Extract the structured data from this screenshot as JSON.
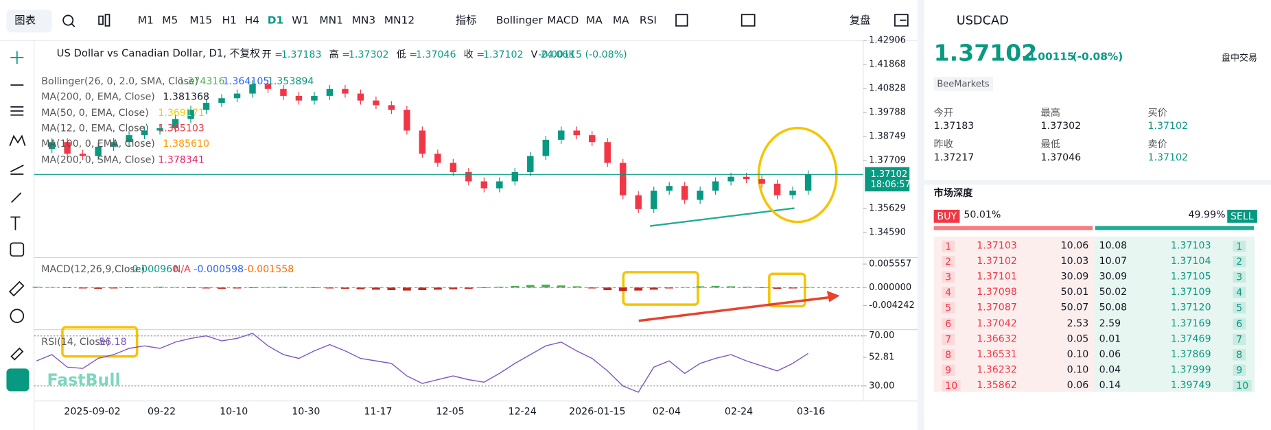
{
  "toolbar": {
    "chart_menu": "图表",
    "timeframes": [
      "M1",
      "M5",
      "M15",
      "H1",
      "H4",
      "D1",
      "W1",
      "MN1",
      "MN3",
      "MN12"
    ],
    "active_timeframe": 5,
    "indicators_menu": "指标",
    "indicators": [
      "Bollinger",
      "MACD",
      "MA",
      "MA",
      "RSI"
    ],
    "replay": "复盘"
  },
  "chart": {
    "title": "US Dollar vs Canadian Dollar, D1, 不复权",
    "ohlc": [
      {
        "label": "开 =",
        "value": "1.37183"
      },
      {
        "label": "高 =",
        "value": "1.37302"
      },
      {
        "label": "低 =",
        "value": "1.37046"
      },
      {
        "label": "收 =",
        "value": "1.37102"
      },
      {
        "label": "V",
        "value": "24.06K"
      }
    ],
    "change": "-0.00115 (-0.08%)",
    "overlays": [
      {
        "name": "Bollinger(26, 0, 2.0, SMA, Close)",
        "values": [
          "1.374316",
          "1.364105",
          "1.353894"
        ],
        "colors": [
          "#4caf50",
          "#2962ff",
          "#089981"
        ]
      },
      {
        "name": "MA(200, 0, EMA, Close)",
        "values": [
          "1.381368"
        ],
        "colors": [
          "#131722"
        ]
      },
      {
        "name": "MA(50, 0, EMA, Close)",
        "values": [
          "1.369171"
        ],
        "colors": [
          "#f0d000"
        ]
      },
      {
        "name": "MA(12, 0, EMA, Close)",
        "values": [
          "1.365103"
        ],
        "colors": [
          "#f23645"
        ]
      },
      {
        "name": "MA(100, 0, EMA, Close)",
        "values": [
          "1.385610"
        ],
        "colors": [
          "#ff9800"
        ]
      },
      {
        "name": "MA(200, 0, SMA, Close)",
        "values": [
          "1.378341"
        ],
        "colors": [
          "#e91e63"
        ]
      }
    ],
    "price": {
      "ylim": [
        1.335,
        1.429
      ],
      "yticks": [
        1.42906,
        1.41868,
        1.40828,
        1.39788,
        1.38749,
        1.37709,
        1.35629,
        {
          "value": 1.3459,
          "label": "1.34590"
        }
      ],
      "closes": [
        1.382,
        1.385,
        1.38,
        1.379,
        1.383,
        1.385,
        1.388,
        1.39,
        1.391,
        1.395,
        1.399,
        1.402,
        1.404,
        1.406,
        1.41,
        1.408,
        1.405,
        1.403,
        1.405,
        1.408,
        1.406,
        1.403,
        1.401,
        1.399,
        1.39,
        1.38,
        1.376,
        1.372,
        1.368,
        1.365,
        1.368,
        1.372,
        1.379,
        1.386,
        1.39,
        1.388,
        1.385,
        1.376,
        1.362,
        1.356,
        1.364,
        1.366,
        1.36,
        1.364,
        1.368,
        1.37,
        1.369,
        1.367,
        1.362,
        1.364,
        1.371
      ],
      "last_price": 1.37102,
      "countdown": "18:06:57"
    },
    "macd": {
      "label": "MACD(12,26,9,Close)",
      "values": [
        "0.000960",
        "N/A",
        "-0.000598",
        "-0.001558"
      ],
      "ylim": [
        -0.00996,
        0.00709
      ],
      "yticks": [
        0.005557,
        {
          "value": 0,
          "label": "0.000000"
        },
        -0.004242
      ],
      "histogram": [
        0.0002,
        0.0001,
        -0.0001,
        -0.0002,
        -0.0003,
        -0.0002,
        -0.0001,
        0.0001,
        0.0002,
        0.0001,
        -0.0001,
        -0.0002,
        -0.0003,
        -0.0002,
        -0.0001,
        0.0001,
        0.0002,
        0.0001,
        -0.0001,
        -0.0002,
        -0.0003,
        -0.0004,
        -0.0005,
        -0.0006,
        -0.0007,
        -0.0006,
        -0.0005,
        -0.0004,
        -0.0003,
        -0.0001,
        0.0002,
        0.0004,
        0.0006,
        0.0007,
        0.0005,
        0.0003,
        -0.0002,
        -0.0006,
        -0.0008,
        -0.0007,
        -0.0005,
        -0.0002,
        0.0001,
        0.0003,
        0.0004,
        0.0003,
        0.0002,
        -0.0001,
        -0.0003,
        -0.0002,
        0.0001
      ]
    },
    "rsi": {
      "label": "RSI(14, Close)",
      "value": "56.18",
      "ylim": [
        18,
        73
      ],
      "yticks": [
        {
          "value": 70,
          "label": "70.00"
        },
        52.81,
        {
          "value": 30,
          "label": "30.00"
        }
      ],
      "values": [
        50,
        55,
        45,
        44,
        52,
        55,
        60,
        62,
        60,
        65,
        68,
        70,
        66,
        68,
        72,
        62,
        55,
        52,
        58,
        63,
        58,
        52,
        50,
        48,
        38,
        32,
        35,
        38,
        35,
        33,
        40,
        48,
        55,
        62,
        65,
        58,
        52,
        42,
        30,
        25,
        45,
        50,
        40,
        48,
        52,
        55,
        50,
        46,
        42,
        48,
        56
      ]
    },
    "dates": [
      "2025-09-02",
      "09-22",
      "10-10",
      "10-30",
      "11-17",
      "12-05",
      "12-24",
      "2026-01-15",
      "02-04",
      "02-24",
      "03-16"
    ],
    "watermark": "FastBull"
  },
  "quote": {
    "symbol": "USDCAD",
    "price": "1.37102",
    "change": "-0.00115",
    "change_pct": "(-0.08%)",
    "session": "盘中交易",
    "broker": "BeeMarkets",
    "fields": [
      {
        "label": "今开",
        "value": "1.37183"
      },
      {
        "label": "最高",
        "value": "1.37302"
      },
      {
        "label": "买价",
        "value": "1.37102"
      },
      {
        "label": "昨收",
        "value": "1.37217"
      },
      {
        "label": "最低",
        "value": "1.37046"
      },
      {
        "label": "卖价",
        "value": "1.37102"
      }
    ]
  },
  "depth": {
    "title": "市场深度",
    "buy_label": "BUY",
    "buy_pct": "50.01%",
    "sell_pct": "49.99%",
    "sell_label": "SELL",
    "rows": [
      [
        "1",
        "1.37103",
        "10.06",
        "10.08",
        "1.37103",
        "1"
      ],
      [
        "2",
        "1.37102",
        "10.03",
        "10.07",
        "1.37104",
        "2"
      ],
      [
        "3",
        "1.37101",
        "30.09",
        "30.09",
        "1.37105",
        "3"
      ],
      [
        "4",
        "1.37098",
        "50.01",
        "50.02",
        "1.37109",
        "4"
      ],
      [
        "5",
        "1.37087",
        "50.07",
        "50.08",
        "1.37120",
        "5"
      ],
      [
        "6",
        "1.37042",
        "2.53",
        "2.59",
        "1.37169",
        "6"
      ],
      [
        "7",
        "1.36632",
        "0.05",
        "0.01",
        "1.37469",
        "7"
      ],
      [
        "8",
        "1.36531",
        "0.10",
        "0.06",
        "1.37869",
        "8"
      ],
      [
        "9",
        "1.36232",
        "0.10",
        "0.04",
        "1.37999",
        "9"
      ],
      [
        "10",
        "1.35862",
        "0.06",
        "0.14",
        "1.39749",
        "10"
      ]
    ]
  }
}
